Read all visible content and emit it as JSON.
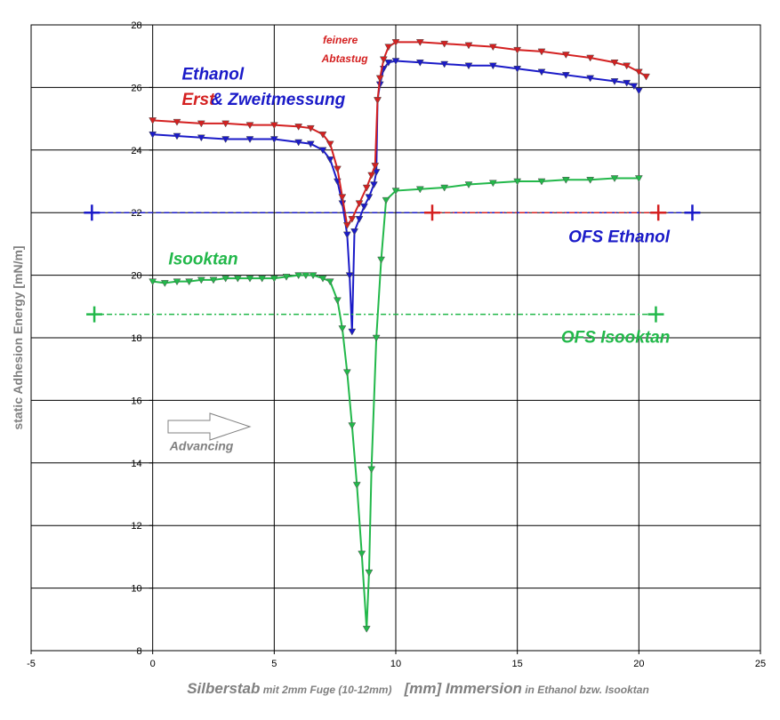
{
  "chart_data": {
    "type": "line",
    "ylabel": "static Adhesion Energy  [mN/m]",
    "xlabel_parts": [
      {
        "text": "Silberstab",
        "size": "big"
      },
      {
        "text": " mit 2mm Fuge (10-12mm)",
        "size": "small"
      },
      {
        "text": "   [mm] Immersion",
        "size": "big"
      },
      {
        "text": " in Ethanol bzw. Isooktan",
        "size": "small"
      }
    ],
    "xlim": [
      -5,
      25
    ],
    "ylim": [
      8,
      28
    ],
    "xticks": [
      -5,
      0,
      5,
      10,
      15,
      20,
      25
    ],
    "yticks": [
      8,
      10,
      12,
      14,
      16,
      18,
      20,
      22,
      24,
      26,
      28
    ],
    "grid": true,
    "colors": {
      "ethanol_blue": "#1a1ac8",
      "ethanol_red": "#d42020",
      "isooktan_green": "#22b84a",
      "advancing_gray": "#808080"
    },
    "annotations": [
      {
        "text": "Ethanol",
        "color": "#1a1ac8",
        "x": 1.2,
        "y": 26.25,
        "size": 19
      },
      {
        "text": "Erst",
        "color": "#d42020",
        "x": 1.2,
        "y": 25.45,
        "size": 19
      },
      {
        "text": "& Zweitmessung",
        "color": "#1a1ac8",
        "x": 2.4,
        "y": 25.45,
        "size": 19
      },
      {
        "text": "feinere",
        "color": "#d42020",
        "x": 7.0,
        "y": 27.4,
        "size": 12
      },
      {
        "text": "Abtastug",
        "color": "#d42020",
        "x": 6.95,
        "y": 26.8,
        "size": 12
      },
      {
        "text": "OFS Ethanol",
        "color": "#1a1ac8",
        "x": 17.1,
        "y": 21.05,
        "size": 19
      },
      {
        "text": "Isooktan",
        "color": "#22b84a",
        "x": 0.65,
        "y": 20.35,
        "size": 19
      },
      {
        "text": "OFS Isooktan",
        "color": "#22b84a",
        "x": 16.8,
        "y": 17.85,
        "size": 19
      },
      {
        "text": "Advancing",
        "color": "#808080",
        "x": 0.7,
        "y": 14.4,
        "size": 14
      }
    ],
    "series": [
      {
        "color": "#22b84a",
        "marker": "triangle-down",
        "x": [
          0,
          0.5,
          1,
          1.5,
          2,
          2.5,
          3,
          3.5,
          4,
          4.5,
          5,
          5.5,
          6,
          6.3,
          6.6,
          7.0,
          7.3,
          7.6,
          7.8,
          8.0,
          8.2,
          8.4,
          8.6,
          8.8,
          8.9,
          9.0,
          9.2,
          9.4,
          9.6,
          10,
          11,
          12,
          13,
          14,
          15,
          16,
          17,
          18,
          19,
          20
        ],
        "y": [
          19.8,
          19.75,
          19.8,
          19.8,
          19.85,
          19.85,
          19.9,
          19.9,
          19.9,
          19.9,
          19.9,
          19.95,
          20.0,
          20.0,
          20.0,
          19.9,
          19.8,
          19.2,
          18.3,
          16.9,
          15.2,
          13.3,
          11.1,
          8.7,
          10.5,
          13.8,
          18.0,
          20.5,
          22.4,
          22.7,
          22.75,
          22.8,
          22.9,
          22.95,
          23.0,
          23.0,
          23.05,
          23.05,
          23.1,
          23.1
        ]
      },
      {
        "color": "#1a1ac8",
        "marker": "triangle-down",
        "x": [
          0,
          1,
          2,
          3,
          4,
          5,
          6,
          6.5,
          7.0,
          7.3,
          7.6,
          7.8,
          8.0,
          8.1,
          8.2,
          8.3,
          8.5,
          8.7,
          8.9,
          9.1,
          9.2,
          9.25,
          9.35,
          9.5,
          9.7,
          10,
          11,
          12,
          13,
          14,
          15,
          16,
          17,
          18,
          19,
          19.5,
          19.8,
          20
        ],
        "y": [
          24.5,
          24.45,
          24.4,
          24.35,
          24.35,
          24.35,
          24.25,
          24.2,
          24.0,
          23.7,
          23.0,
          22.3,
          21.3,
          20.0,
          18.2,
          21.4,
          21.8,
          22.2,
          22.5,
          22.9,
          23.3,
          25.6,
          26.1,
          26.6,
          26.8,
          26.85,
          26.8,
          26.75,
          26.7,
          26.7,
          26.6,
          26.5,
          26.4,
          26.3,
          26.2,
          26.15,
          26.05,
          25.9
        ]
      },
      {
        "color": "#d42020",
        "marker": "triangle-down",
        "x": [
          0,
          1,
          2,
          3,
          4,
          5,
          6,
          6.5,
          7.0,
          7.3,
          7.6,
          7.8,
          8.0,
          8.2,
          8.5,
          8.8,
          9.0,
          9.15,
          9.25,
          9.35,
          9.5,
          9.7,
          10,
          11,
          12,
          13,
          14,
          15,
          16,
          17,
          18,
          19,
          19.5,
          20,
          20.3
        ],
        "y": [
          24.95,
          24.9,
          24.85,
          24.85,
          24.8,
          24.8,
          24.75,
          24.7,
          24.5,
          24.2,
          23.4,
          22.5,
          21.6,
          21.8,
          22.3,
          22.8,
          23.2,
          23.5,
          25.6,
          26.3,
          26.9,
          27.3,
          27.45,
          27.45,
          27.4,
          27.35,
          27.3,
          27.2,
          27.15,
          27.05,
          26.95,
          26.8,
          26.7,
          26.5,
          26.35
        ]
      },
      {
        "color": "#1a1ac8",
        "marker": "plus",
        "dash": "6,3",
        "x": [
          -2.5,
          22.2
        ],
        "y": [
          22.0,
          22.0
        ]
      },
      {
        "color": "#d42020",
        "marker": "plus",
        "dash": "6,3,2,3",
        "x": [
          11.5,
          20.8
        ],
        "y": [
          22.0,
          22.0
        ]
      },
      {
        "color": "#22b84a",
        "marker": "plus",
        "dash": "6,3,2,3",
        "x": [
          -2.4,
          20.7
        ],
        "y": [
          18.75,
          18.75
        ]
      }
    ]
  }
}
